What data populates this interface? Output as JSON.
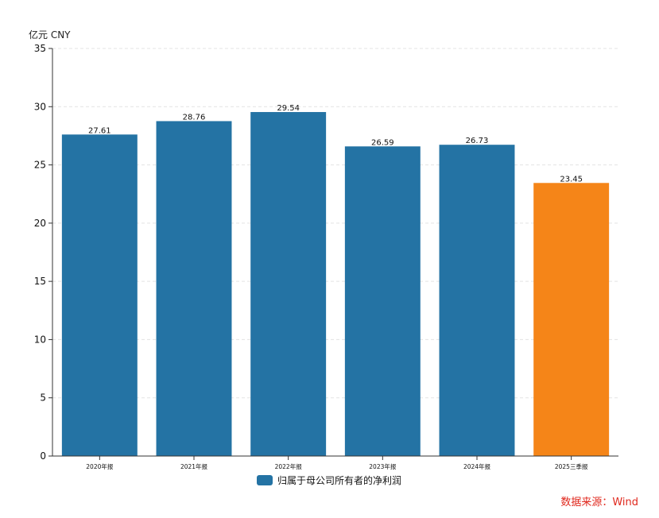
{
  "unit_label": "亿元  CNY",
  "source_text": "数据来源：Wind",
  "chart_data": {
    "type": "bar",
    "categories": [
      "2020年报",
      "2021年报",
      "2022年报",
      "2023年报",
      "2024年报",
      "2025三季报"
    ],
    "series": [
      {
        "name": "归属于母公司所有者的净利润",
        "values": [
          27.61,
          28.76,
          29.54,
          26.59,
          26.73,
          23.45
        ],
        "data_labels": [
          "27.61",
          "28.76",
          "29.54",
          "26.59",
          "26.73",
          "23.45"
        ]
      }
    ],
    "ylim": [
      0,
      35
    ],
    "yticks": [
      0,
      5,
      10,
      15,
      20,
      25,
      30,
      35
    ],
    "grid": true,
    "legend_position": "bottom",
    "colors": {
      "default": "#2473a4",
      "highlight": "#f58518"
    },
    "highlight_index": 5
  }
}
